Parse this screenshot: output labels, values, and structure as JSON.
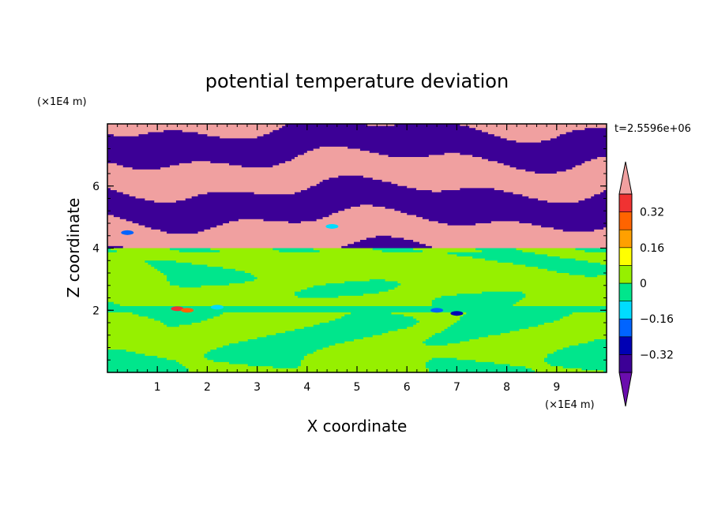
{
  "chart_data": {
    "type": "heatmap",
    "title": "potential temperature deviation",
    "xlabel": "X coordinate",
    "ylabel": "Z coordinate",
    "x_unit": "(×1E4 m)",
    "y_unit": "(×1E4 m)",
    "time_label": "t=2.5596e+06",
    "xlim": [
      0,
      10
    ],
    "ylim": [
      0,
      8
    ],
    "x_ticks": [
      1,
      2,
      3,
      4,
      5,
      6,
      7,
      8,
      9
    ],
    "y_ticks": [
      2,
      4,
      6
    ],
    "colorbar": {
      "levels": [
        -0.4,
        -0.32,
        -0.24,
        -0.16,
        -0.08,
        0,
        0.08,
        0.16,
        0.24,
        0.32,
        0.4
      ],
      "tick_labels": [
        "0.32",
        "0.16",
        "0",
        "−0.16",
        "−0.32"
      ],
      "tick_values": [
        0.32,
        0.16,
        0,
        -0.16,
        -0.32
      ],
      "colors": [
        "#6a0dad",
        "#3c0096",
        "#0000b4",
        "#0064ff",
        "#00dcff",
        "#00e68c",
        "#96f000",
        "#ffff00",
        "#ffa000",
        "#ff6400",
        "#f03232",
        "#f0a0a0"
      ],
      "extend": "both"
    },
    "regions": [
      {
        "z_range": [
          0,
          1.0
        ],
        "dominant": [
          -0.08,
          0.08
        ],
        "pattern": "mixed green with eddies"
      },
      {
        "z_range": [
          1.0,
          2.0
        ],
        "dominant": [
          0,
          0.08
        ],
        "pattern": "mostly light green with green eddies"
      },
      {
        "z_range": [
          2.0,
          2.1
        ],
        "dominant": [
          -0.08,
          0
        ],
        "pattern": "thin band with red and blue spots near x=1.5"
      },
      {
        "z_range": [
          2.1,
          4.0
        ],
        "dominant": [
          0,
          0.08
        ],
        "pattern": "light green with green patches"
      },
      {
        "z_range": [
          4.0,
          8.0
        ],
        "dominant": [
          -0.4,
          0.4
        ],
        "pattern": "alternating purple and pink stripes"
      }
    ]
  }
}
